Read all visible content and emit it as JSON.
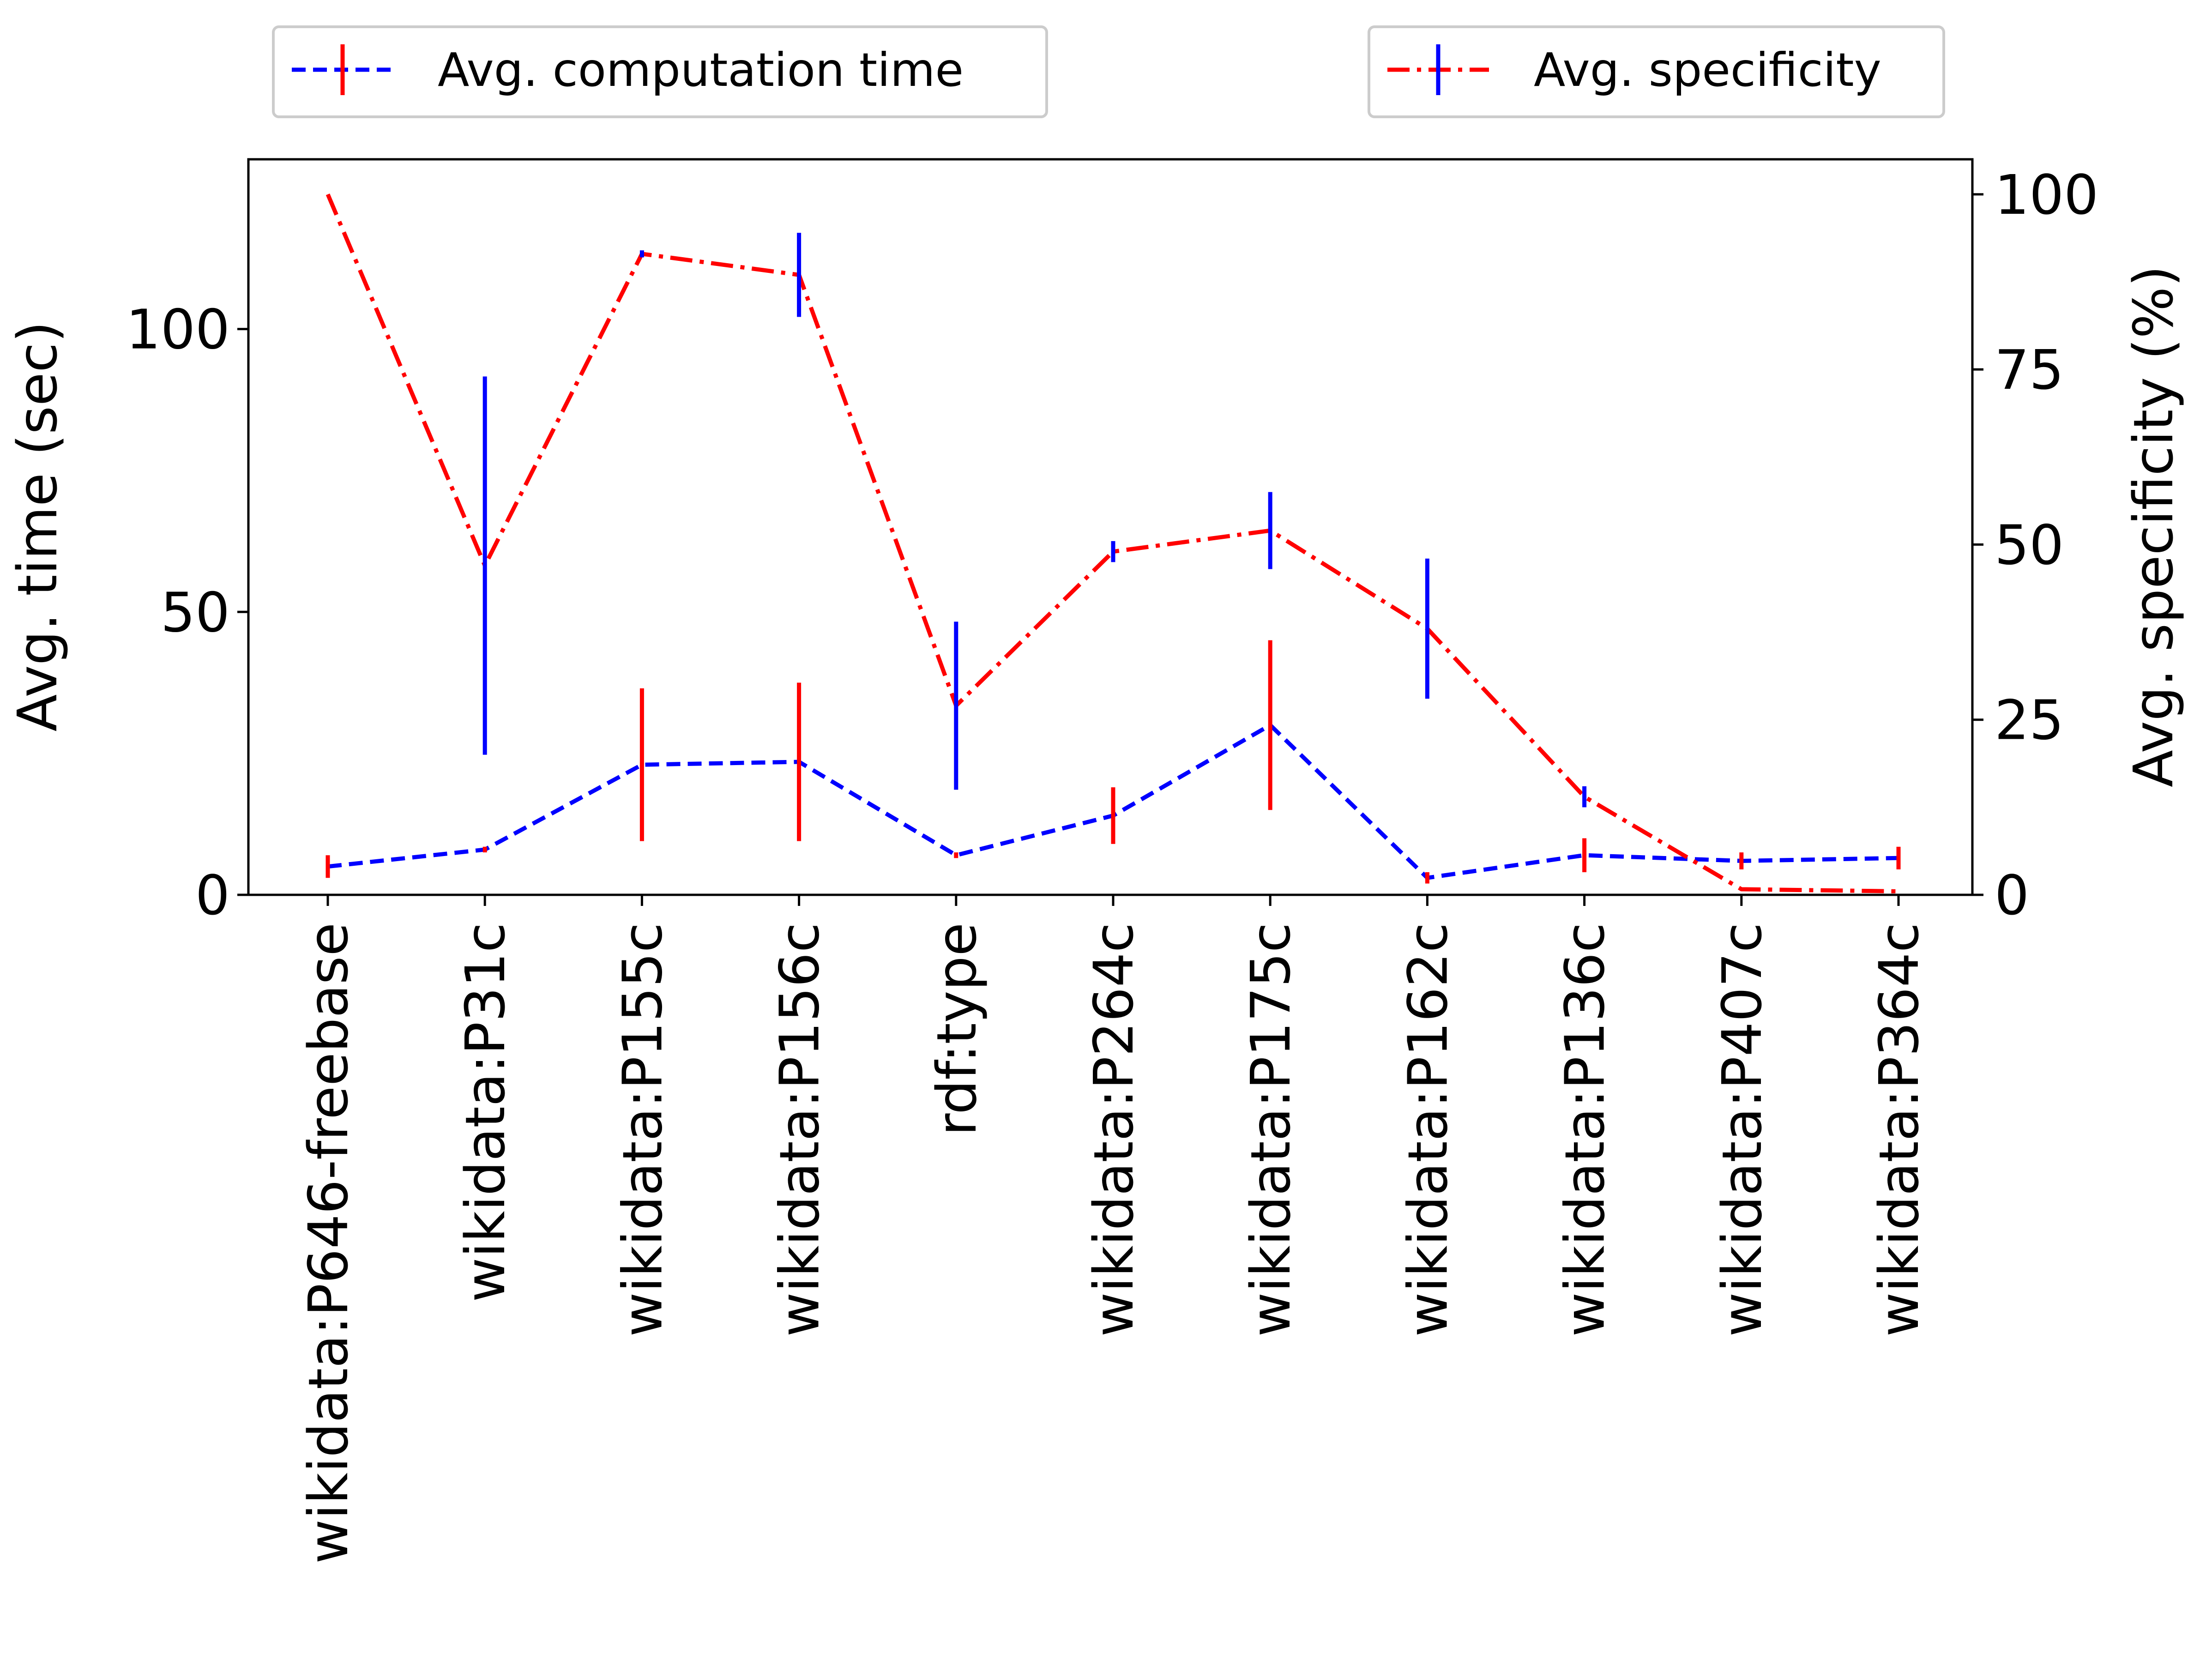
{
  "chart_data": {
    "type": "line",
    "categories": [
      "wikidata:P646-freebase",
      "wikidata:P31c",
      "wikidata:P155c",
      "wikidata:P156c",
      "rdf:type",
      "wikidata:P264c",
      "wikidata:P175c",
      "wikidata:P162c",
      "wikidata:P136c",
      "wikidata:P407c",
      "wikidata:P364c"
    ],
    "ylabel": "Avg. time (sec)",
    "y2label": "Avg. specificity (%)",
    "ylim": [
      0,
      130
    ],
    "y2lim": [
      0,
      105
    ],
    "yticks": [
      0,
      50,
      100
    ],
    "y2ticks": [
      0,
      25,
      50,
      75,
      100
    ],
    "series": [
      {
        "name": "Avg. computation time",
        "axis": "left",
        "color": "#0000ff",
        "linestyle": "dashed",
        "errorbar_color": "#ff0000",
        "values": [
          5,
          8,
          23,
          23.5,
          7,
          14,
          30,
          3,
          7,
          6,
          6.5
        ],
        "errors": [
          2,
          0.5,
          13.5,
          14,
          0.5,
          5,
          15,
          1,
          3,
          1.5,
          2
        ]
      },
      {
        "name": "Avg. specificity",
        "axis": "right",
        "color": "#ff0000",
        "linestyle": "dashdot",
        "errorbar_color": "#0000ff",
        "values": [
          100,
          47,
          91.5,
          88.5,
          27,
          49,
          52,
          38,
          14,
          0.8,
          0.5
        ],
        "errors": [
          0,
          27,
          0.5,
          6,
          12,
          1.5,
          5.5,
          10,
          1.5,
          0,
          0
        ]
      }
    ],
    "grid": false,
    "legend": [
      "upper-left",
      "upper-right"
    ]
  }
}
